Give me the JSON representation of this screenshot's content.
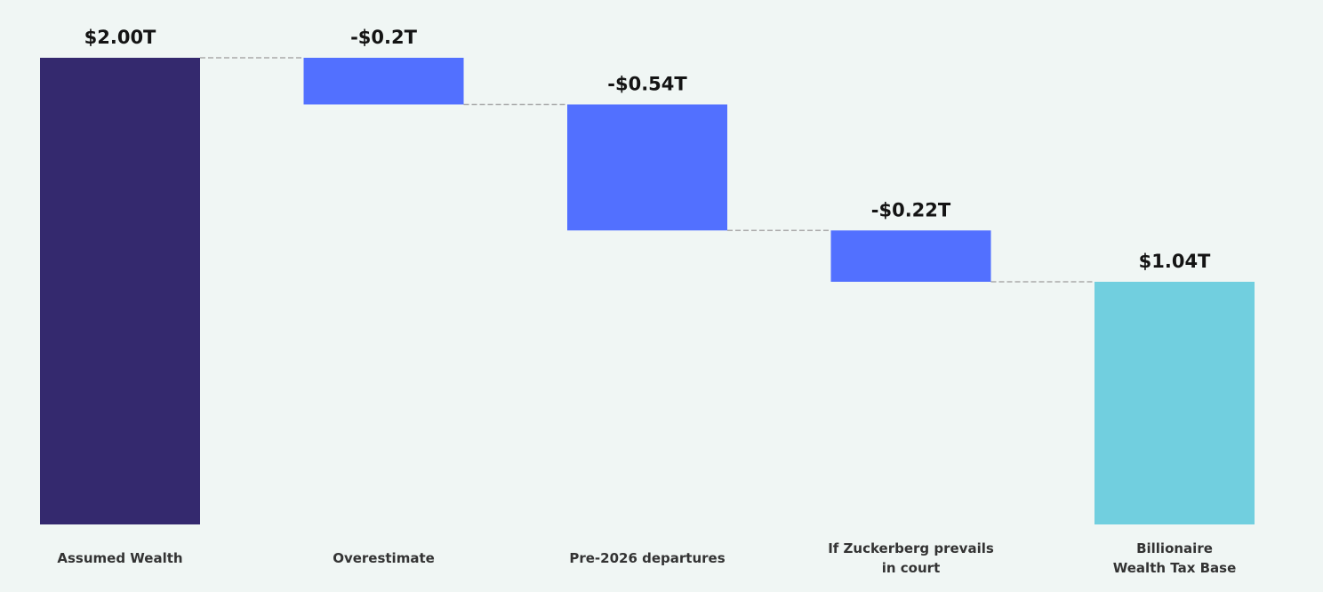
{
  "chart_data": {
    "type": "bar",
    "subtype": "waterfall",
    "categories": [
      [
        "Assumed Wealth"
      ],
      [
        "Overestimate"
      ],
      [
        "Pre-2026 departures"
      ],
      [
        "If Zuckerberg prevails",
        "in court"
      ],
      [
        "Billionaire",
        "Wealth Tax Base"
      ]
    ],
    "steps": [
      {
        "kind": "total",
        "value": 2.0,
        "label": "$2.00T",
        "color": "#34296e"
      },
      {
        "kind": "delta",
        "value": -0.2,
        "label": "-$0.2T",
        "color": "#5270ff"
      },
      {
        "kind": "delta",
        "value": -0.54,
        "label": "-$0.54T",
        "color": "#5270ff"
      },
      {
        "kind": "delta",
        "value": -0.22,
        "label": "-$0.22T",
        "color": "#5270ff"
      },
      {
        "kind": "total",
        "value": 1.04,
        "label": "$1.04T",
        "color": "#71cfdf"
      }
    ],
    "unit": "T",
    "ylim": [
      0,
      2.0
    ],
    "grid": false,
    "connector_color": "#aaaaaa"
  }
}
